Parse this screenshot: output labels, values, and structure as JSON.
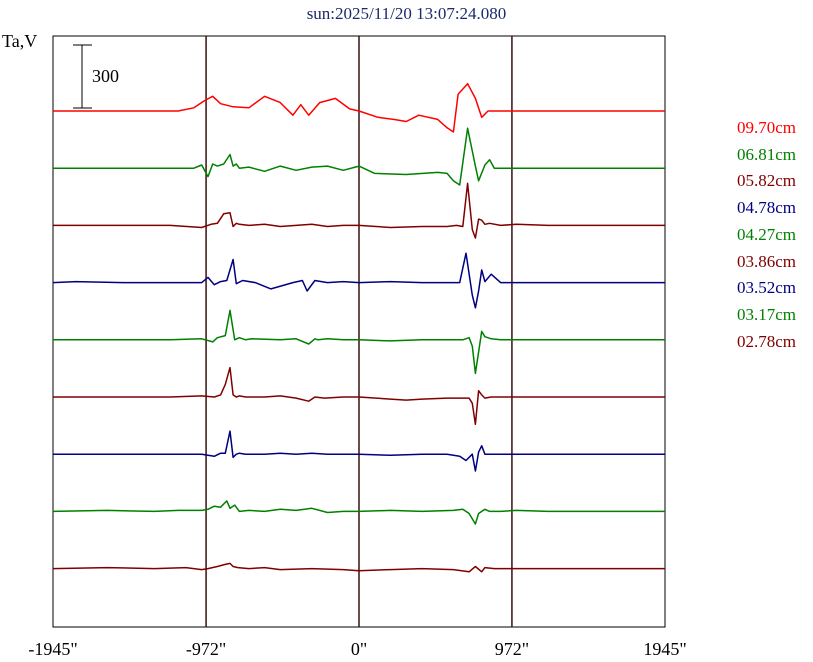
{
  "chart_data": {
    "type": "line",
    "title": "sun:2025/11/20 13:07:24.080",
    "ylabel": "Ta,V",
    "scale_bar_label": "300",
    "x_ticks": [
      {
        "value": -1945,
        "label": "-1945\""
      },
      {
        "value": -972,
        "label": "-972\""
      },
      {
        "value": 0,
        "label": "0\""
      },
      {
        "value": 972,
        "label": "972\""
      },
      {
        "value": 1945,
        "label": "1945\""
      }
    ],
    "xlim": [
      -1945,
      1945
    ],
    "vertical_lines_at": [
      -972,
      0,
      972
    ],
    "series": [
      {
        "name": "09.70cm",
        "color": "#ff0000",
        "baseline": 0,
        "x": [
          -1945,
          -1280,
          -1150,
          -1050,
          -980,
          -930,
          -880,
          -800,
          -700,
          -600,
          -500,
          -420,
          -370,
          -320,
          -250,
          -150,
          -60,
          0,
          120,
          220,
          300,
          380,
          500,
          560,
          600,
          630,
          690,
          740,
          780,
          820,
          860,
          900,
          960,
          1000,
          1100,
          1200,
          1945
        ],
        "y": [
          0,
          0,
          0,
          15,
          50,
          70,
          35,
          20,
          15,
          70,
          40,
          -20,
          30,
          -20,
          40,
          60,
          10,
          0,
          -30,
          -40,
          -50,
          -20,
          -40,
          -80,
          -100,
          80,
          130,
          60,
          -30,
          0,
          0,
          0,
          0,
          0,
          0,
          0,
          0
        ]
      },
      {
        "name": "06.81cm",
        "color": "#008000",
        "baseline": 1,
        "x": [
          -1945,
          -1500,
          -1200,
          -1050,
          -1000,
          -960,
          -930,
          -900,
          -860,
          -820,
          -800,
          -780,
          -760,
          -700,
          -600,
          -500,
          -400,
          -300,
          -200,
          -100,
          0,
          100,
          300,
          500,
          560,
          600,
          640,
          690,
          740,
          760,
          800,
          830,
          860,
          900,
          1000,
          1200,
          1945
        ],
        "y": [
          0,
          0,
          0,
          0,
          15,
          -40,
          20,
          10,
          20,
          65,
          10,
          20,
          0,
          5,
          -15,
          10,
          -10,
          5,
          10,
          -10,
          10,
          -25,
          -30,
          -20,
          -25,
          -60,
          -80,
          190,
          10,
          -60,
          15,
          40,
          0,
          0,
          0,
          0,
          0
        ]
      },
      {
        "name": "05.82cm",
        "color": "#800000",
        "baseline": 2,
        "x": [
          -1945,
          -1500,
          -1200,
          -1000,
          -940,
          -900,
          -860,
          -820,
          -800,
          -780,
          -760,
          -700,
          -600,
          -500,
          -400,
          -300,
          -200,
          -100,
          0,
          200,
          400,
          560,
          620,
          660,
          690,
          720,
          740,
          760,
          780,
          800,
          830,
          900,
          1000,
          1200,
          1945
        ],
        "y": [
          0,
          0,
          0,
          -10,
          5,
          10,
          55,
          60,
          -5,
          10,
          5,
          0,
          5,
          -5,
          0,
          5,
          -5,
          0,
          0,
          -10,
          -5,
          -5,
          0,
          -5,
          200,
          -20,
          -60,
          30,
          25,
          5,
          10,
          0,
          5,
          0,
          0
        ]
      },
      {
        "name": "04.78cm",
        "color": "#000080",
        "baseline": 3,
        "x": [
          -1945,
          -1800,
          -1500,
          -1200,
          -1000,
          -960,
          -920,
          -880,
          -840,
          -800,
          -780,
          -740,
          -660,
          -560,
          -420,
          -360,
          -330,
          -280,
          -200,
          -100,
          0,
          200,
          400,
          560,
          640,
          680,
          720,
          740,
          760,
          780,
          800,
          840,
          900,
          960,
          1100,
          1300,
          1945
        ],
        "y": [
          0,
          5,
          0,
          0,
          0,
          25,
          -10,
          5,
          10,
          110,
          -5,
          10,
          0,
          -30,
          0,
          10,
          -40,
          10,
          0,
          5,
          0,
          5,
          0,
          0,
          0,
          140,
          -60,
          -120,
          -40,
          60,
          5,
          40,
          0,
          0,
          0,
          0,
          0
        ]
      },
      {
        "name": "04.27cm",
        "color": "#008000",
        "baseline": 4,
        "x": [
          -1945,
          -1500,
          -1200,
          -1000,
          -930,
          -900,
          -850,
          -820,
          -790,
          -760,
          -720,
          -680,
          -500,
          -400,
          -320,
          -280,
          -260,
          -200,
          -100,
          0,
          200,
          400,
          560,
          660,
          700,
          720,
          740,
          780,
          800,
          840,
          900,
          1000,
          1200,
          1945
        ],
        "y": [
          0,
          0,
          0,
          5,
          -10,
          10,
          20,
          140,
          0,
          10,
          0,
          5,
          0,
          5,
          -20,
          5,
          0,
          5,
          0,
          0,
          -5,
          0,
          0,
          0,
          10,
          -30,
          -160,
          40,
          15,
          5,
          0,
          0,
          0,
          0
        ]
      },
      {
        "name": "03.86cm",
        "color": "#800000",
        "baseline": 5,
        "x": [
          -1945,
          -1500,
          -1200,
          -1000,
          -920,
          -880,
          -850,
          -820,
          -800,
          -780,
          -760,
          -720,
          -600,
          -500,
          -400,
          -320,
          -280,
          -220,
          -100,
          0,
          200,
          300,
          400,
          560,
          660,
          700,
          720,
          740,
          760,
          780,
          800,
          840,
          900,
          1000,
          1200,
          1945
        ],
        "y": [
          0,
          0,
          0,
          5,
          0,
          10,
          60,
          140,
          10,
          0,
          5,
          0,
          0,
          5,
          -5,
          -20,
          0,
          -5,
          0,
          0,
          -10,
          -15,
          -10,
          -5,
          -5,
          -5,
          -30,
          -130,
          30,
          10,
          -5,
          0,
          0,
          0,
          0,
          0
        ]
      },
      {
        "name": "03.52cm",
        "color": "#000080",
        "baseline": 6,
        "x": [
          -1945,
          -1500,
          -1200,
          -1000,
          -920,
          -880,
          -850,
          -820,
          -800,
          -780,
          -760,
          -720,
          -600,
          -500,
          -400,
          -300,
          -200,
          -100,
          0,
          200,
          400,
          560,
          640,
          680,
          720,
          740,
          760,
          780,
          800,
          860,
          900,
          1000,
          1200,
          1945
        ],
        "y": [
          0,
          0,
          0,
          0,
          -10,
          5,
          5,
          110,
          -15,
          0,
          5,
          0,
          0,
          5,
          0,
          5,
          0,
          0,
          0,
          -5,
          0,
          0,
          -10,
          -30,
          0,
          -80,
          10,
          40,
          0,
          0,
          0,
          0,
          0,
          0
        ]
      },
      {
        "name": "03.17cm",
        "color": "#008000",
        "baseline": 7,
        "x": [
          -1945,
          -1600,
          -1300,
          -1150,
          -1000,
          -960,
          -920,
          -880,
          -840,
          -820,
          -790,
          -760,
          -700,
          -600,
          -500,
          -400,
          -300,
          -200,
          -100,
          0,
          200,
          400,
          600,
          660,
          700,
          740,
          760,
          800,
          830,
          900,
          1000,
          1200,
          1945
        ],
        "y": [
          0,
          5,
          0,
          5,
          5,
          10,
          25,
          20,
          50,
          15,
          30,
          0,
          5,
          0,
          10,
          5,
          15,
          -5,
          0,
          0,
          5,
          0,
          5,
          10,
          -10,
          -60,
          -10,
          10,
          0,
          0,
          5,
          0,
          0
        ]
      },
      {
        "name": "02.78cm",
        "color": "#800000",
        "baseline": 8,
        "x": [
          -1945,
          -1600,
          -1300,
          -1100,
          -1000,
          -960,
          -900,
          -850,
          -820,
          -800,
          -770,
          -700,
          -600,
          -500,
          -300,
          -100,
          0,
          200,
          400,
          600,
          700,
          740,
          780,
          800,
          860,
          900,
          1000,
          1200,
          1945
        ],
        "y": [
          0,
          5,
          0,
          5,
          -5,
          0,
          10,
          20,
          25,
          10,
          5,
          0,
          5,
          -5,
          0,
          -5,
          -10,
          -5,
          0,
          -5,
          -15,
          10,
          -15,
          5,
          0,
          0,
          0,
          0,
          0
        ]
      }
    ],
    "grid": false,
    "legend_position": "right"
  }
}
